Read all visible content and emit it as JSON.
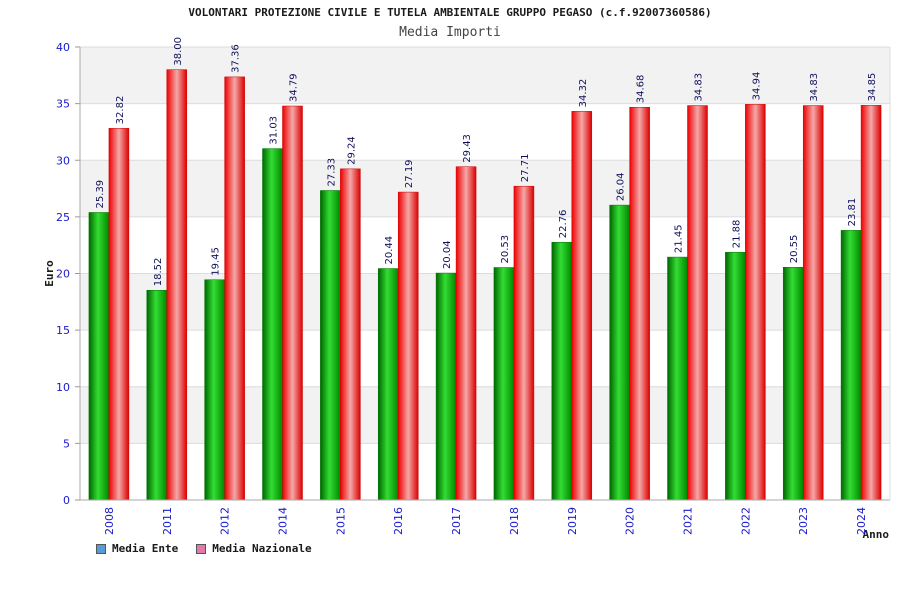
{
  "chart_data": {
    "type": "bar",
    "title": "VOLONTARI PROTEZIONE CIVILE E TUTELA AMBIENTALE GRUPPO PEGASO (c.f.92007360586)",
    "subtitle": "Media Importi",
    "xlabel": "Anno",
    "ylabel": "Euro",
    "ylim": [
      0,
      40
    ],
    "yticks": [
      0,
      5,
      10,
      15,
      20,
      25,
      30,
      35,
      40
    ],
    "categories": [
      "2008",
      "2011",
      "2012",
      "2014",
      "2015",
      "2016",
      "2017",
      "2018",
      "2019",
      "2020",
      "2021",
      "2022",
      "2023",
      "2024"
    ],
    "series": [
      {
        "name": "Media Ente",
        "color": "#00aa00",
        "legend_color": "#5b9bd5",
        "values": [
          25.39,
          18.52,
          19.45,
          31.03,
          27.33,
          20.44,
          20.04,
          20.53,
          22.76,
          26.04,
          21.45,
          21.88,
          20.55,
          23.81
        ],
        "labels": [
          "25.39",
          "18.52",
          "19.45",
          "31.03",
          "27.33",
          "20.44",
          "20.04",
          "20.53",
          "22.76",
          "26.04",
          "21.45",
          "21.88",
          "20.55",
          "23.81"
        ]
      },
      {
        "name": "Media Nazionale",
        "color": "#ee1111",
        "legend_color": "#e07aa8",
        "values": [
          32.82,
          38.0,
          37.36,
          34.79,
          29.24,
          27.19,
          29.43,
          27.71,
          34.32,
          34.68,
          34.83,
          34.94,
          34.83,
          34.85
        ],
        "labels": [
          "32.82",
          "38.00",
          "37.36",
          "34.79",
          "29.24",
          "27.19",
          "29.43",
          "27.71",
          "34.32",
          "34.68",
          "34.83",
          "34.94",
          "34.83",
          "34.85"
        ]
      }
    ],
    "grid": true,
    "legend_position": "bottom-left"
  }
}
